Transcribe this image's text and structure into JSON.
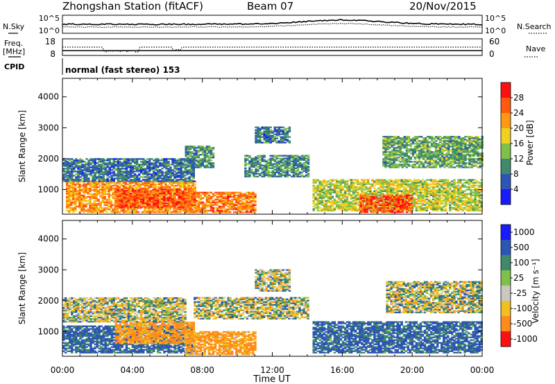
{
  "header": {
    "station": "Zhongshan Station (fitACF)",
    "beam": "Beam 07",
    "date": "20/Nov/2015"
  },
  "nsky_panel": {
    "left_label": "N.Sky",
    "right_label": "N.Search",
    "left_ticks": [
      "10^5",
      "10^0"
    ],
    "right_ticks": [
      "10^5",
      "10^0"
    ]
  },
  "freq_panel": {
    "left_label_1": "Freq.",
    "left_label_2": "[MHz]",
    "right_label": "Nave",
    "left_ticks": [
      "18",
      "8"
    ],
    "right_ticks": [
      "60",
      "0"
    ]
  },
  "cpid_panel": {
    "label": "CPID",
    "mode_text": "normal (fast stereo) 153"
  },
  "colors": {
    "power": [
      "#1a1aff",
      "#2d55b4",
      "#3f8a6a",
      "#7fc04a",
      "#f0d020",
      "#ff9a10",
      "#ff5a10",
      "#ff1010"
    ],
    "velocity": [
      "#1a1aff",
      "#2d55b4",
      "#3f8a6a",
      "#7fc04a",
      "#c8c8c0",
      "#f0c020",
      "#ff8c1a",
      "#ff1010"
    ]
  },
  "chart_data": [
    {
      "type": "heatmap",
      "name": "power",
      "ylabel": "Slant Range [km]",
      "yticks": [
        "4000",
        "3000",
        "2000",
        "1000"
      ],
      "ylim": [
        200,
        4600
      ],
      "xlim_hours": [
        0,
        24
      ],
      "colorbar_label": "Power [dB]",
      "colorbar_ticks": [
        "28",
        "24",
        "20",
        "16",
        "12",
        "8",
        "4"
      ],
      "colorbar_range": [
        0,
        32
      ],
      "regions": [
        {
          "t0": 0.2,
          "t1": 7.6,
          "r0": 250,
          "r1": 1250,
          "v": 22
        },
        {
          "t0": 3.0,
          "t1": 7.0,
          "r0": 400,
          "r1": 1000,
          "v": 27
        },
        {
          "t0": 0.0,
          "t1": 7.5,
          "r0": 1250,
          "r1": 2000,
          "v": 8
        },
        {
          "t0": 7.0,
          "t1": 11.0,
          "r0": 250,
          "r1": 900,
          "v": 24
        },
        {
          "t0": 7.0,
          "t1": 8.6,
          "r0": 1700,
          "r1": 2400,
          "v": 10
        },
        {
          "t0": 10.4,
          "t1": 14.0,
          "r0": 1400,
          "r1": 2100,
          "v": 10
        },
        {
          "t0": 11.0,
          "t1": 13.0,
          "r0": 2500,
          "r1": 3000,
          "v": 8
        },
        {
          "t0": 14.3,
          "t1": 24.0,
          "r0": 300,
          "r1": 1300,
          "v": 16
        },
        {
          "t0": 17.0,
          "t1": 20.0,
          "r0": 250,
          "r1": 800,
          "v": 27
        },
        {
          "t0": 18.3,
          "t1": 24.0,
          "r0": 1700,
          "r1": 2700,
          "v": 12
        }
      ]
    },
    {
      "type": "heatmap",
      "name": "velocity",
      "ylabel": "Slant Range [km]",
      "yticks": [
        "4000",
        "3000",
        "2000",
        "1000"
      ],
      "ylim": [
        200,
        4600
      ],
      "xlim_hours": [
        0,
        24
      ],
      "xticks": [
        "00:00",
        "04:00",
        "08:00",
        "12:00",
        "16:00",
        "20:00",
        "00:00"
      ],
      "xlabel": "Time UT",
      "colorbar_label": "Velocity [m s⁻¹]",
      "colorbar_ticks": [
        "1000",
        "500",
        "100",
        "25",
        "-25",
        "-100",
        "-500",
        "-1000"
      ],
      "regions": [
        {
          "t0": 0.0,
          "t1": 7.5,
          "r0": 300,
          "r1": 1200,
          "v": 150
        },
        {
          "t0": 3.0,
          "t1": 7.5,
          "r0": 600,
          "r1": 1300,
          "v": -150
        },
        {
          "t0": 0.0,
          "t1": 7.0,
          "r0": 1300,
          "r1": 2100,
          "v": 0
        },
        {
          "t0": 7.0,
          "t1": 11.0,
          "r0": 250,
          "r1": 1000,
          "v": -150
        },
        {
          "t0": 7.5,
          "t1": 14.0,
          "r0": 1400,
          "r1": 2100,
          "v": 0
        },
        {
          "t0": 11.0,
          "t1": 13.0,
          "r0": 2300,
          "r1": 3000,
          "v": 0
        },
        {
          "t0": 14.3,
          "t1": 24.0,
          "r0": 300,
          "r1": 1300,
          "v": 150
        },
        {
          "t0": 18.5,
          "t1": 24.0,
          "r0": 1600,
          "r1": 2600,
          "v": 0
        }
      ]
    }
  ]
}
